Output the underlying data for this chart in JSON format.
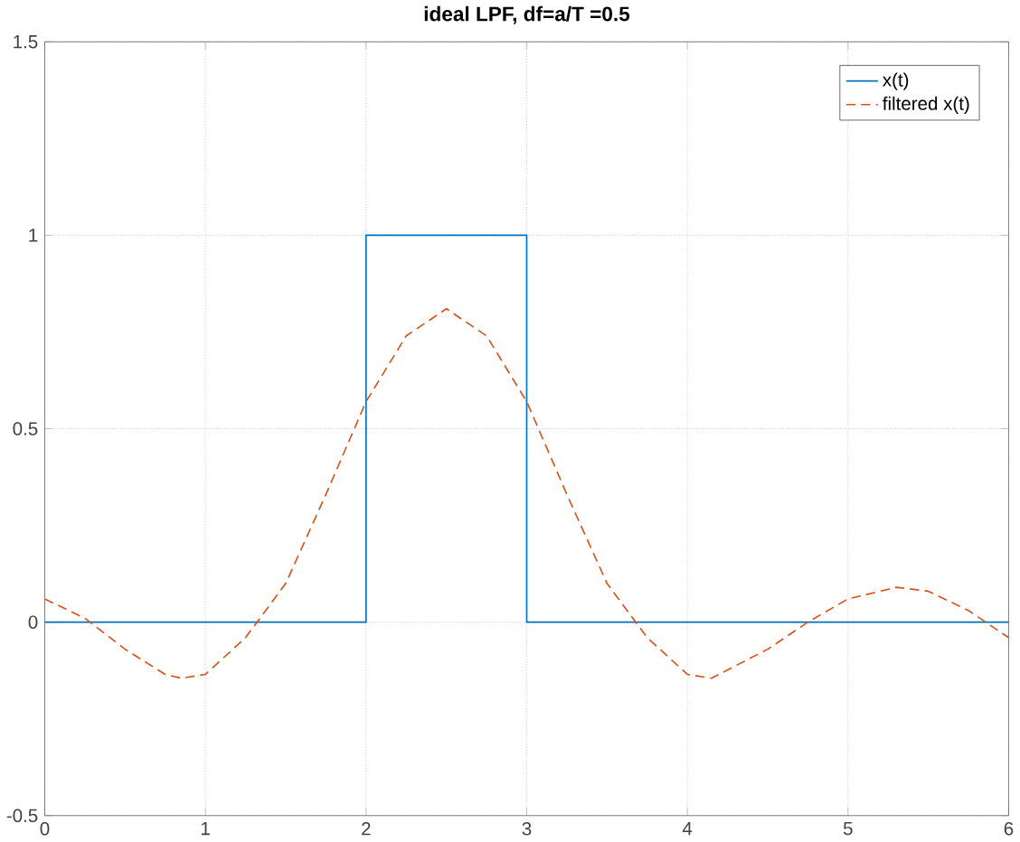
{
  "chart_data": {
    "type": "line",
    "title": "ideal LPF, df=a/T =0.5",
    "xlim": [
      0,
      6
    ],
    "ylim": [
      -0.5,
      1.5
    ],
    "xticks": [
      0,
      1,
      2,
      3,
      4,
      5,
      6
    ],
    "yticks": [
      -0.5,
      0,
      0.5,
      1,
      1.5
    ],
    "grid": true,
    "legend": "top right",
    "series": [
      {
        "name": "x(t)",
        "color": "#0072bd",
        "line_style": "solid",
        "x": [
          0,
          2,
          2,
          3,
          3,
          6
        ],
        "values": [
          0,
          0,
          1,
          1,
          0,
          0
        ]
      },
      {
        "name": "filtered x(t)",
        "color": "#d95319",
        "line_style": "dashed",
        "x": [
          0,
          0.25,
          0.5,
          0.75,
          0.85,
          1,
          1.25,
          1.5,
          1.75,
          2,
          2.25,
          2.5,
          2.75,
          3,
          3.25,
          3.5,
          3.75,
          4,
          4.15,
          4.5,
          4.75,
          5,
          5.3,
          5.5,
          5.75,
          6
        ],
        "values": [
          0.06,
          0.01,
          -0.07,
          -0.135,
          -0.145,
          -0.135,
          -0.04,
          0.1,
          0.33,
          0.57,
          0.74,
          0.81,
          0.74,
          0.57,
          0.33,
          0.1,
          -0.04,
          -0.135,
          -0.145,
          -0.07,
          0.0,
          0.06,
          0.09,
          0.08,
          0.03,
          -0.04
        ]
      }
    ]
  }
}
